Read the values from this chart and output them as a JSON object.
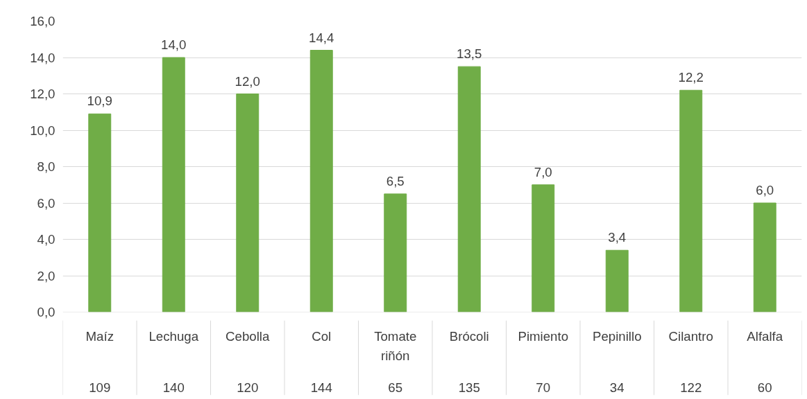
{
  "chart_data": {
    "type": "bar",
    "categories": [
      "Maíz",
      "Lechuga",
      "Cebolla",
      "Col",
      "Tomate riñón",
      "Brócoli",
      "Pimiento",
      "Pepinillo",
      "Cilantro",
      "Alfalfa"
    ],
    "values": [
      10.9,
      14.0,
      12.0,
      14.4,
      6.5,
      13.5,
      7.0,
      3.4,
      12.2,
      6.0
    ],
    "color": "#70ad47",
    "value_labels": [
      "10,9",
      "14,0",
      "12,0",
      "14,4",
      "6,5",
      "13,5",
      "7,0",
      "3,4",
      "12,2",
      "6,0"
    ],
    "ylim": [
      0,
      16
    ],
    "yticks": [
      {
        "value": 0,
        "label": "0,0"
      },
      {
        "value": 2,
        "label": "2,0"
      },
      {
        "value": 4,
        "label": "4,0"
      },
      {
        "value": 6,
        "label": "6,0"
      },
      {
        "value": 8,
        "label": "8,0"
      },
      {
        "value": 10,
        "label": "10,0"
      },
      {
        "value": 12,
        "label": "12,0"
      },
      {
        "value": 14,
        "label": "14,0"
      },
      {
        "value": 16,
        "label": "16,0"
      }
    ],
    "grid": "y",
    "annotations": [
      "109",
      "140",
      "120",
      "144",
      "65",
      "135",
      "70",
      "34",
      "122",
      "60"
    ]
  }
}
